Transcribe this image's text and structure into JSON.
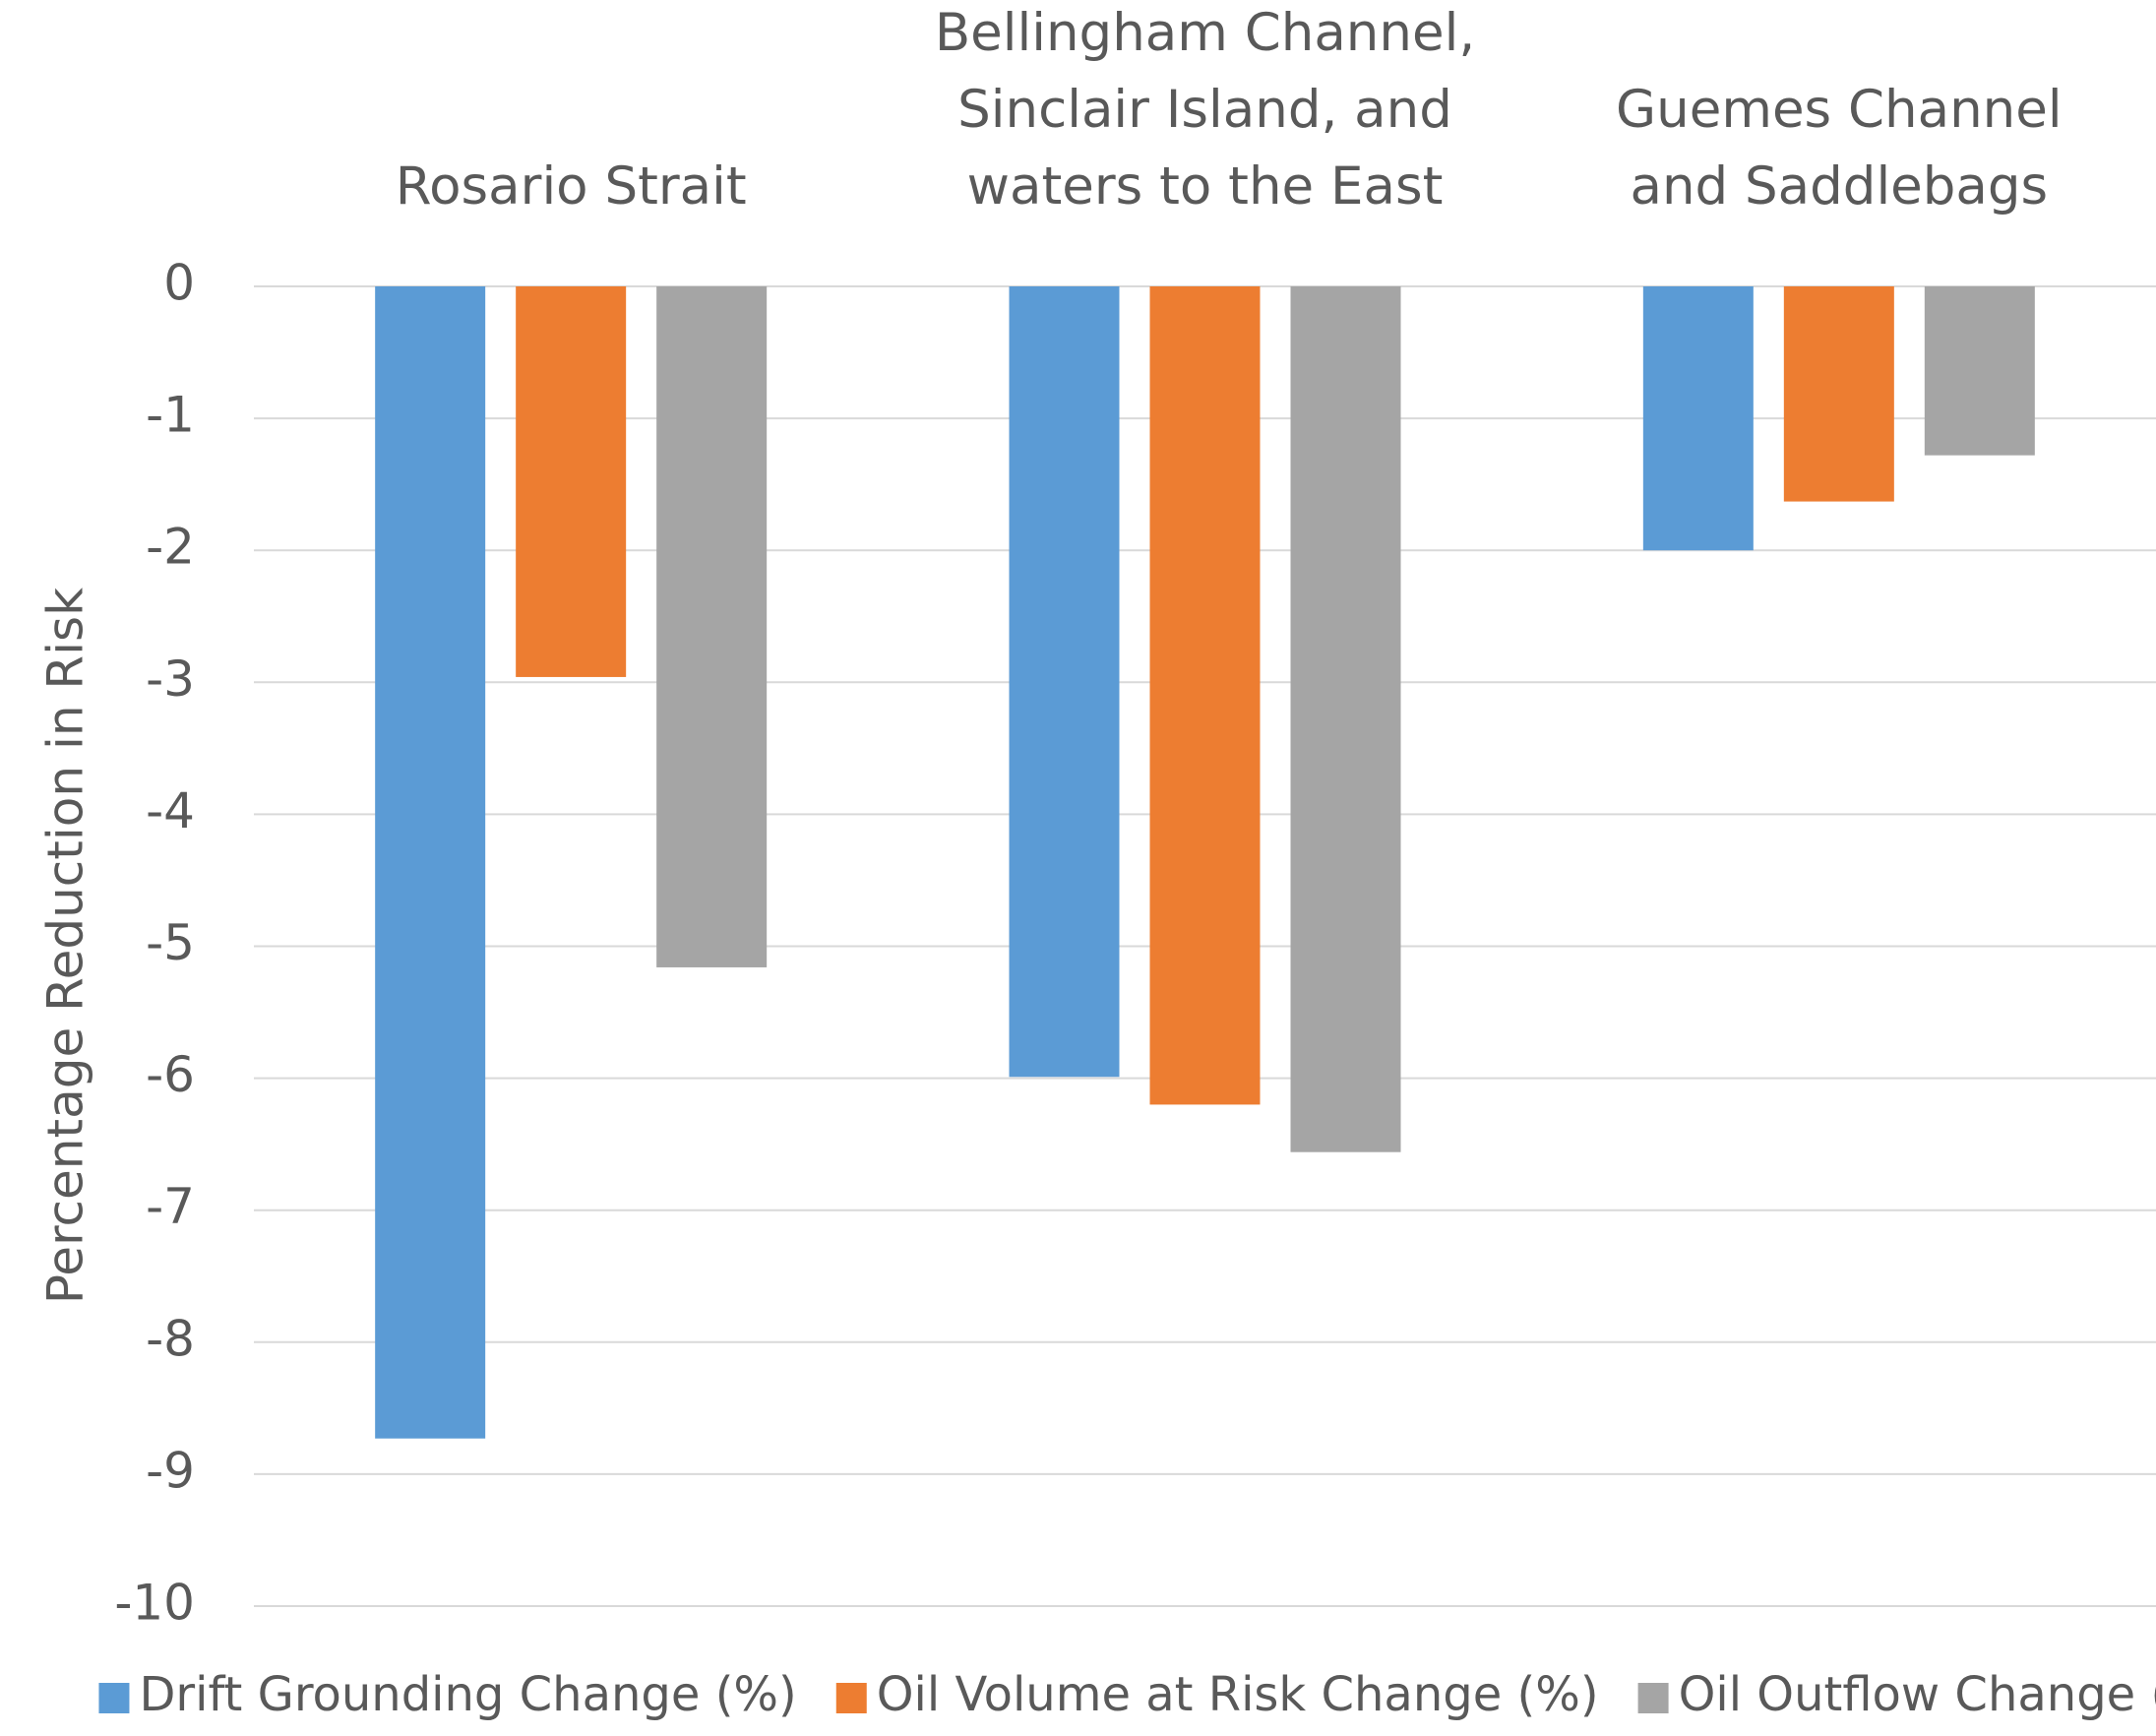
{
  "chart_data": {
    "type": "bar",
    "categories": [
      "Rosario Strait",
      "Bellingham Channel, Sinclair Island, and waters to the East",
      "Guemes Channel and Saddlebags"
    ],
    "series": [
      {
        "name": "Drift Grounding Change (%)",
        "color": "#5b9bd5",
        "values": [
          -8.73,
          -5.99,
          -2.0
        ]
      },
      {
        "name": "Oil Volume at Risk Change (%)",
        "color": "#ed7d31",
        "values": [
          -2.96,
          -6.2,
          -1.63
        ]
      },
      {
        "name": "Oil Outflow Change (%)",
        "color": "#a5a5a5",
        "values": [
          -5.16,
          -6.56,
          -1.28
        ]
      }
    ],
    "ylabel": "Percentage Reduction in Risk",
    "ylim": [
      -10,
      0
    ],
    "yticks": [
      0,
      -1,
      -2,
      -3,
      -4,
      -5,
      -6,
      -7,
      -8,
      -9,
      -10
    ],
    "grid": true,
    "legend": "bottom"
  }
}
